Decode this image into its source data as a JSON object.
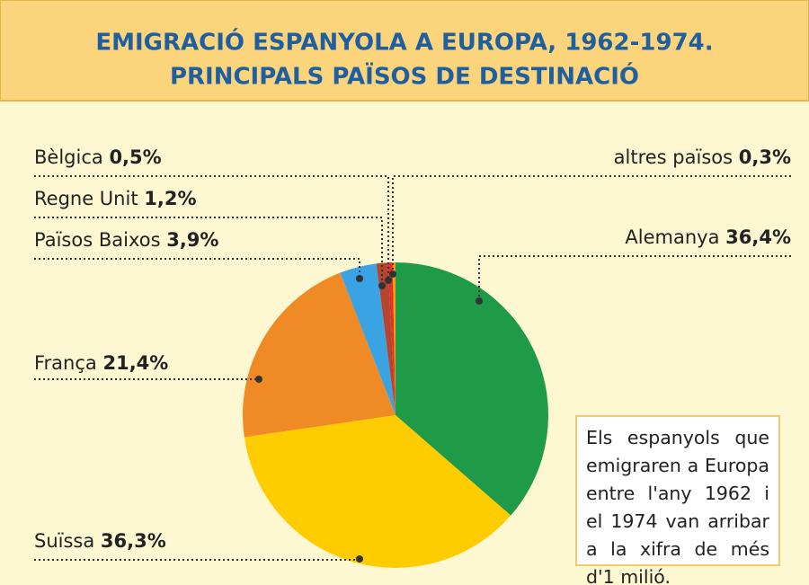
{
  "chart_data": {
    "type": "pie",
    "title": "EMIGRACIÓ ESPANYOLA A EUROPA, 1962-1974.",
    "subtitle": "PRINCIPALS PAÏSOS DE DESTINACIÓ",
    "categories": [
      "Alemanya",
      "Suïssa",
      "França",
      "Països Baixos",
      "Regne Unit",
      "Bèlgica",
      "altres països"
    ],
    "values": [
      36.4,
      36.3,
      21.4,
      3.9,
      1.2,
      0.5,
      0.3
    ],
    "value_labels": [
      "36,4%",
      "36,3%",
      "21,4%",
      "3,9%",
      "1,2%",
      "0,5%",
      "0,3%"
    ],
    "colors": [
      "#1f9a48",
      "#ffcc00",
      "#f08a24",
      "#3aa3e3",
      "#b5452f",
      "#e03030",
      "#f5a000"
    ],
    "annotation": "Els espanyols que emigraren a Europa entre l'any 1962 i el 1974 van arribar a la xifra de més d'1 milió."
  }
}
